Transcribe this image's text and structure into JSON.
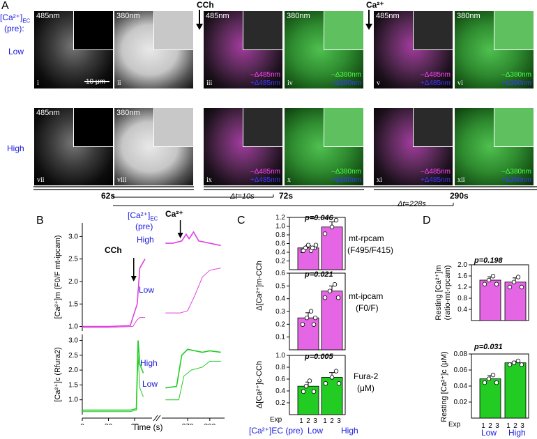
{
  "panel_a": {
    "letter": "A",
    "ca_label": "[Ca²⁺]",
    "ca_sub": "EC",
    "pre": "(pre):",
    "low": "Low",
    "high": "High",
    "cch": "CCh",
    "ca2": "Ca²⁺",
    "scale": "10 μm",
    "wl485": "485nm",
    "wl380": "380nm",
    "leg_m485": "–Δ485nm",
    "leg_p485": "+Δ485nm",
    "leg_m380": "–Δ380nm",
    "leg_p380": "+Δ380nm",
    "roman": [
      "i",
      "ii",
      "iii",
      "iv",
      "v",
      "vi",
      "vii",
      "viii",
      "ix",
      "x",
      "xi",
      "xii"
    ],
    "t62": "62s",
    "t72": "72s",
    "t290": "290s",
    "dt10": "Δt=10s",
    "dt228": "Δt=228s"
  },
  "chart_data": [
    {
      "type": "line",
      "panel": "B",
      "title": "",
      "legend_title": "[Ca²⁺]EC (pre)",
      "xlabel": "Time (s)",
      "xticks": [
        0,
        30,
        60,
        270,
        300
      ],
      "subplots": [
        {
          "ylabel": "[Ca²⁺]m (F0/F mt-ipcam)",
          "ylim": [
            0.9,
            3.3
          ],
          "yticks": [
            1.0,
            1.5,
            2.0,
            2.5,
            3.0
          ],
          "series": [
            {
              "name": "High",
              "color": "#e040e0",
              "x_left": [
                0,
                30,
                55,
                63,
                66,
                72
              ],
              "y_left": [
                1.0,
                1.0,
                1.02,
                1.5,
                2.3,
                2.5
              ],
              "x_right": [
                240,
                250,
                262,
                268,
                272,
                278,
                285,
                300,
                315
              ],
              "y_right": [
                2.85,
                2.85,
                2.9,
                3.05,
                2.95,
                3.1,
                2.9,
                2.85,
                2.8
              ]
            },
            {
              "name": "Low",
              "color": "#e040e0",
              "x_left": [
                0,
                30,
                58,
                63,
                66,
                72
              ],
              "y_left": [
                0.98,
                0.98,
                1.0,
                1.15,
                1.2,
                1.2
              ],
              "x_right": [
                240,
                260,
                270,
                280,
                290,
                300,
                315
              ],
              "y_right": [
                1.3,
                1.3,
                1.35,
                1.7,
                2.1,
                2.25,
                2.3
              ]
            }
          ]
        },
        {
          "ylabel": "[Ca²⁺]c (Rfura2)",
          "ylim": [
            0.5,
            3.2
          ],
          "yticks": [
            1.0,
            1.5,
            2.0,
            2.5,
            3.0
          ],
          "series": [
            {
              "name": "High",
              "color": "#22cc22",
              "x_left": [
                0,
                55,
                62,
                64,
                66,
                70
              ],
              "y_left": [
                0.65,
                0.65,
                0.7,
                3.0,
                2.2,
                1.9
              ],
              "x_right": [
                240,
                255,
                262,
                270,
                280,
                290,
                300,
                315
              ],
              "y_right": [
                1.4,
                1.45,
                2.5,
                2.7,
                2.65,
                2.6,
                2.65,
                2.6
              ]
            },
            {
              "name": "Low",
              "color": "#22cc22",
              "x_left": [
                0,
                55,
                62,
                64,
                66,
                70
              ],
              "y_left": [
                0.6,
                0.6,
                0.65,
                2.5,
                1.4,
                1.1
              ],
              "x_right": [
                240,
                258,
                265,
                275,
                290,
                300,
                315
              ],
              "y_right": [
                1.0,
                1.0,
                1.8,
                2.0,
                2.1,
                2.3,
                2.3
              ]
            }
          ]
        }
      ],
      "annotations": [
        "CCh",
        "Ca²⁺",
        "High",
        "Low"
      ]
    },
    {
      "type": "bar",
      "panel": "C",
      "categories": [
        "Low",
        "High"
      ],
      "xlabel": "[Ca²⁺]EC (pre)",
      "exp_label": "Exp",
      "exp_ticks": [
        "1",
        "2",
        "3",
        "1",
        "2",
        "3"
      ],
      "subplots": [
        {
          "label": "mt-rpcam (F495/F415)",
          "ylabel": "Δ[Ca²⁺]m-CCh",
          "p": "p=0.046",
          "ylim": [
            0,
            1.2
          ],
          "yticks": [
            0.2,
            0.4,
            0.6,
            0.8,
            1.0,
            1.2
          ],
          "color": "#e466e4",
          "values": [
            0.5,
            0.98
          ],
          "errors": [
            0.05,
            0.12
          ]
        },
        {
          "label": "mt-ipcam (F0/F)",
          "ylabel": "",
          "p": "p=0.021",
          "ylim": [
            0,
            0.6
          ],
          "yticks": [
            0.1,
            0.2,
            0.3,
            0.4,
            0.5,
            0.6
          ],
          "color": "#e466e4",
          "values": [
            0.25,
            0.46
          ],
          "errors": [
            0.04,
            0.04
          ]
        },
        {
          "label": "Fura-2 (μM)",
          "ylabel": "Δ[Ca²⁺]c-CCh",
          "p": "p=0.005",
          "ylim": [
            0,
            1.0
          ],
          "yticks": [
            0.2,
            0.4,
            0.6,
            0.8,
            1.0
          ],
          "color": "#22cc22",
          "values": [
            0.48,
            0.63
          ],
          "errors": [
            0.07,
            0.08
          ]
        }
      ]
    },
    {
      "type": "bar",
      "panel": "D",
      "categories": [
        "Low",
        "High"
      ],
      "exp_label": "Exp",
      "exp_ticks": [
        "1",
        "2",
        "3",
        "1",
        "2",
        "3"
      ],
      "subplots": [
        {
          "ylabel": "Resting [Ca²⁺]m (ratio-mt-rpcam)",
          "p": "p=0.198",
          "ylim": [
            0,
            2.0
          ],
          "yticks": [
            0.4,
            0.8,
            1.2,
            1.6,
            2.0
          ],
          "color": "#e466e4",
          "values": [
            1.45,
            1.38
          ],
          "errors": [
            0.12,
            0.15
          ]
        },
        {
          "ylabel": "Resting [Ca²⁺]c (μM)",
          "p": "p=0.031",
          "ylim": [
            0,
            0.08
          ],
          "yticks": [
            0.02,
            0.04,
            0.06,
            0.08
          ],
          "color": "#22cc22",
          "values": [
            0.049,
            0.069
          ],
          "errors": [
            0.004,
            0.002
          ]
        }
      ]
    }
  ],
  "labels": {
    "B": "B",
    "C": "C",
    "D": "D",
    "b_legend_1": "[Ca²⁺]",
    "b_legend_sub": "EC",
    "b_legend_2": "(pre)",
    "b_cch": "CCh",
    "b_ca": "Ca²⁺",
    "b_high1": "High",
    "b_low1": "Low",
    "b_high2": "High",
    "b_low2": "Low",
    "b_ylab_m": "[Ca²⁺]m (F0/F mt-ipcam)",
    "b_ylab_c": "[Ca²⁺]c (Rfura2)",
    "b_xlab": "Time (s)",
    "b_xticks": [
      "0",
      "30",
      "60",
      "270",
      "300"
    ],
    "c_ylab_m": "Δ[Ca²⁺]m-CCh",
    "c_ylab_c": "Δ[Ca²⁺]c-CCh",
    "c_label_1a": "mt-rpcam",
    "c_label_1b": "(F495/F415)",
    "c_label_2a": "mt-ipcam",
    "c_label_2b": "(F0/F)",
    "c_label_3a": "Fura-2",
    "c_label_3b": "(μM)",
    "c_p1": "p=0.046",
    "c_p2": "p=0.021",
    "c_p3": "p=0.005",
    "c_exp": "Exp",
    "c_xlab": "[Ca²⁺]EC (pre)",
    "c_low": "Low",
    "c_high": "High",
    "d_ylab_m1": "Resting [Ca²⁺]m",
    "d_ylab_m2": "(ratio-mt-rpcam)",
    "d_ylab_c": "Resting [Ca²⁺]c (μM)",
    "d_p1": "p=0.198",
    "d_p2": "p=0.031",
    "d_exp": "Exp",
    "d_low": "Low",
    "d_high": "High"
  }
}
